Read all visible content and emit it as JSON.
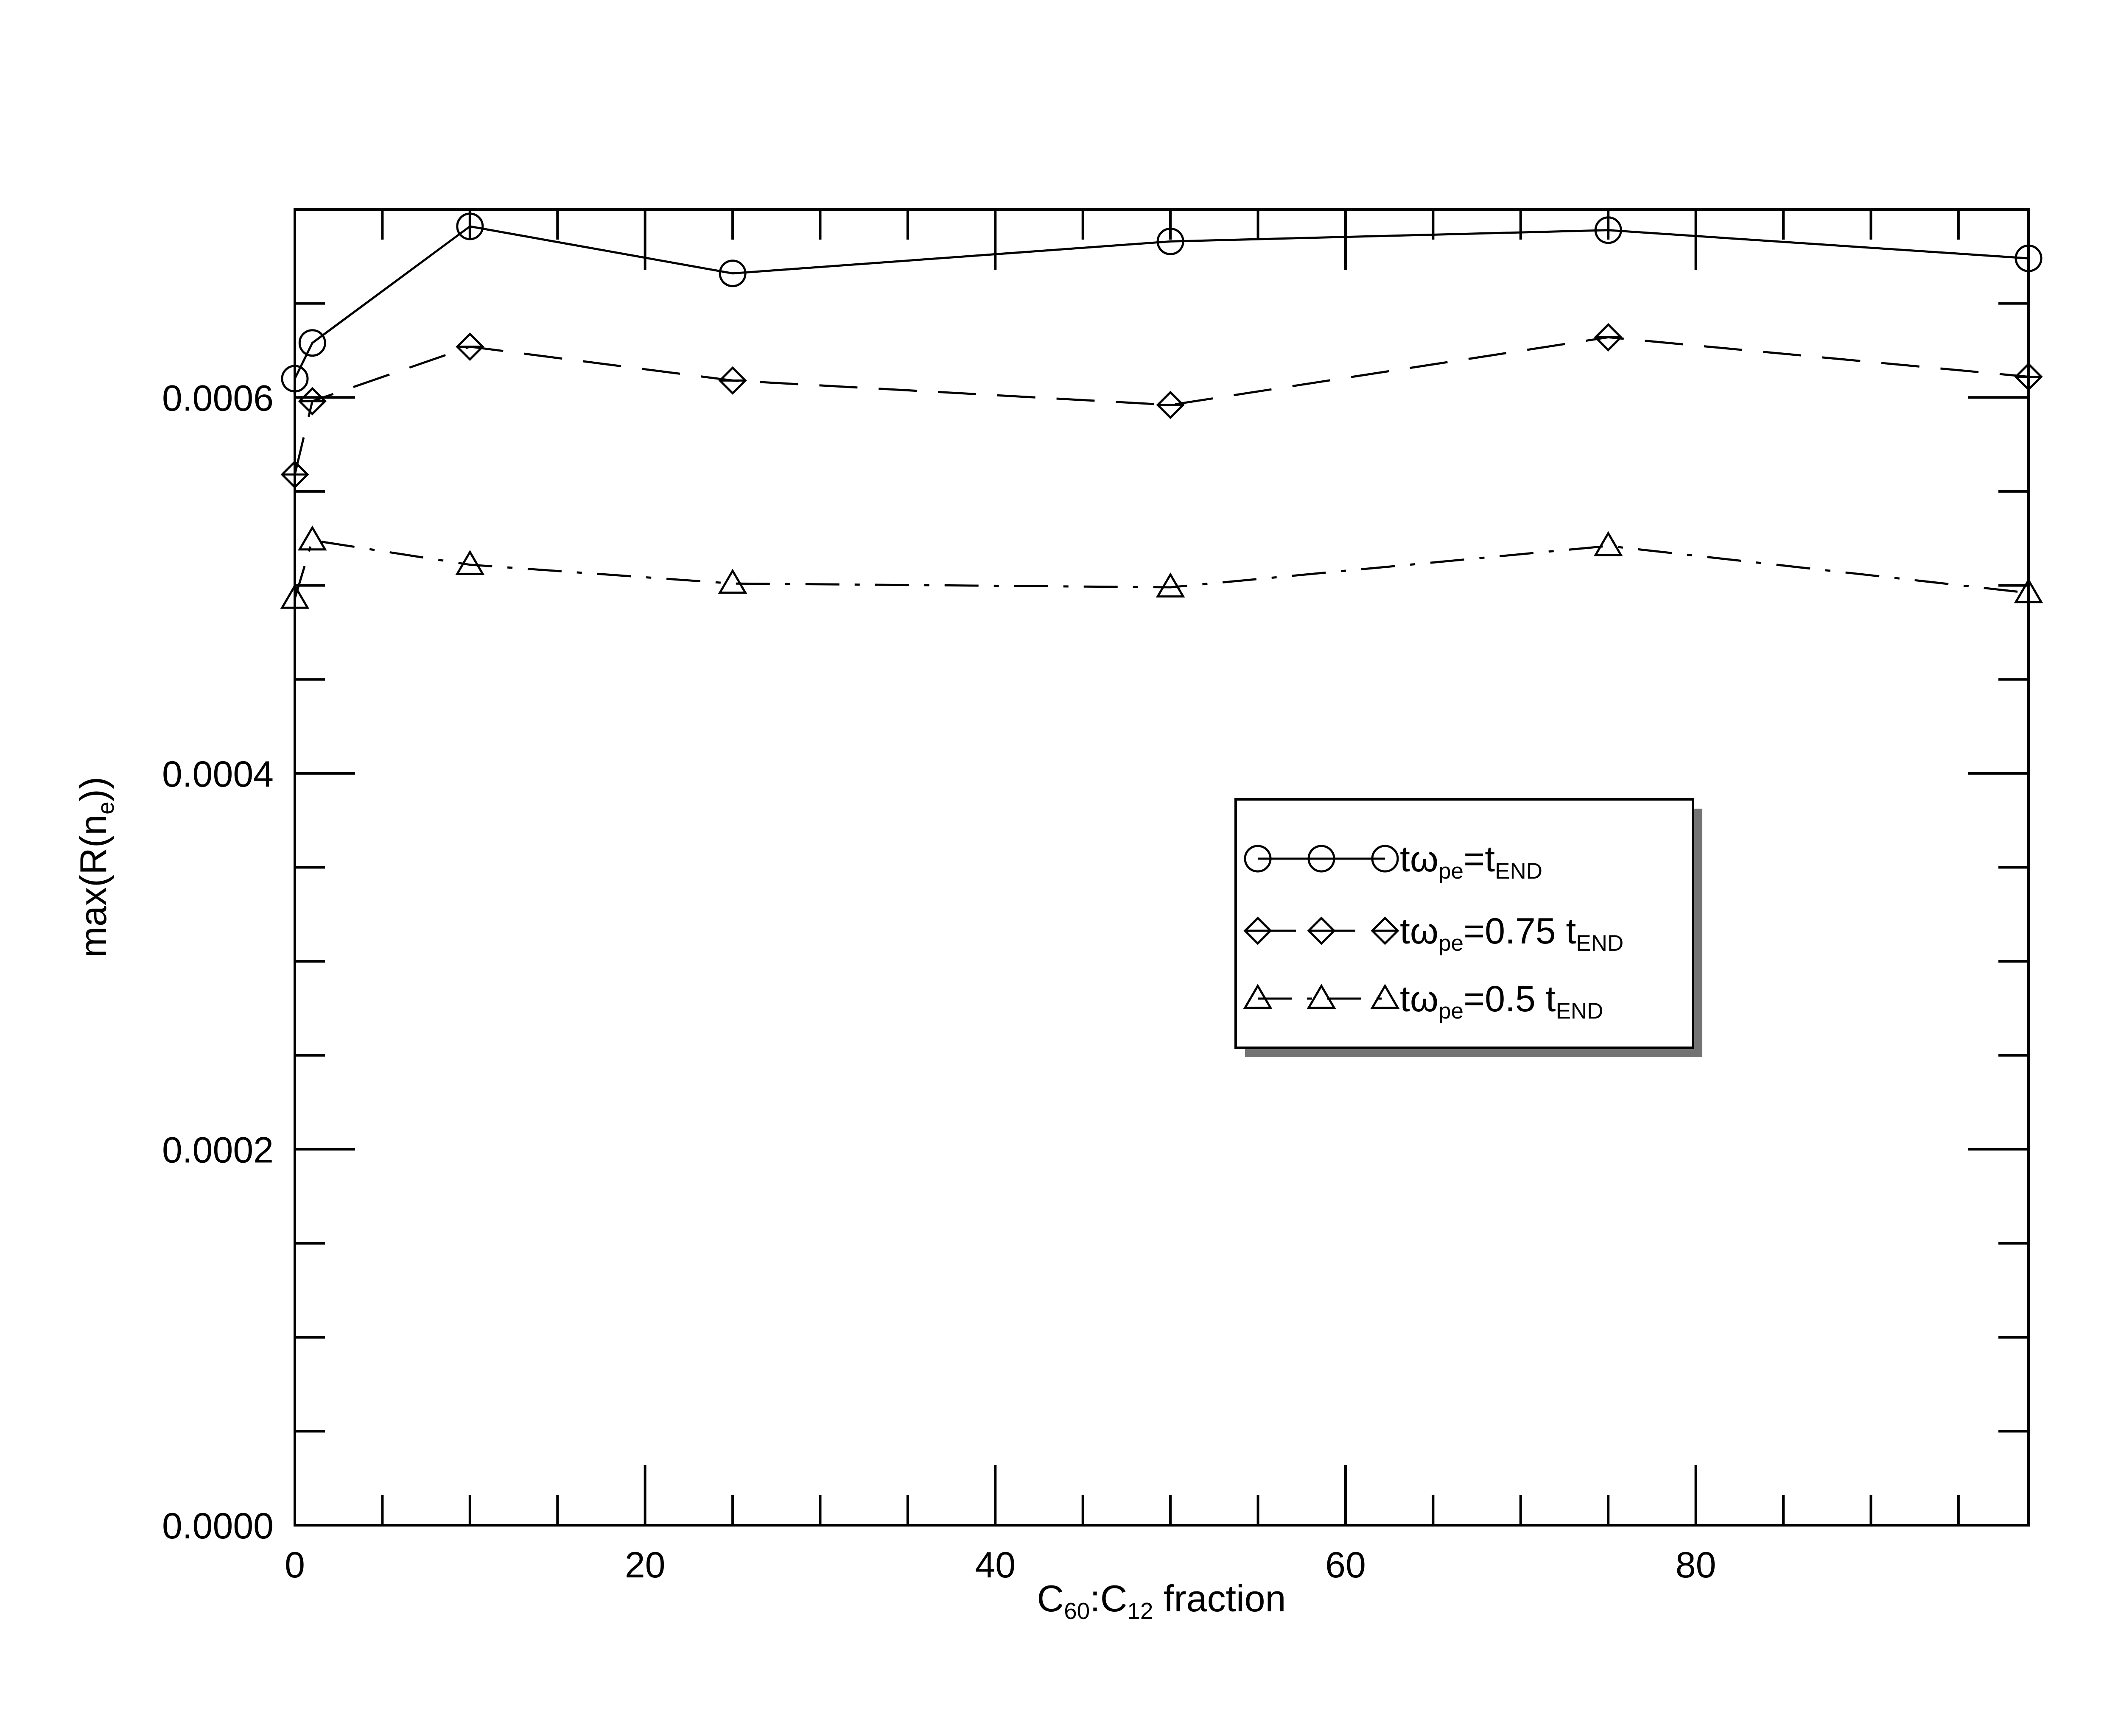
{
  "chart_data": {
    "type": "line",
    "xlabel": {
      "parts": [
        {
          "t": "C",
          "sub": false
        },
        {
          "t": "60",
          "sub": true
        },
        {
          "t": ":C",
          "sub": false
        },
        {
          "t": "12",
          "sub": true
        },
        {
          "t": " fraction",
          "sub": false
        }
      ]
    },
    "ylabel": {
      "parts": [
        {
          "t": "max(R(n",
          "sub": false
        },
        {
          "t": "e",
          "sub": true
        },
        {
          "t": "))",
          "sub": false
        }
      ]
    },
    "xlim": [
      0,
      99
    ],
    "ylim": [
      0,
      0.0007
    ],
    "x_ticks": [
      0,
      20,
      40,
      60,
      80
    ],
    "x_tick_labels": [
      "0",
      "20",
      "40",
      "60",
      "80"
    ],
    "x_minor_step": 5,
    "y_ticks": [
      0,
      0.0002,
      0.0004,
      0.0006
    ],
    "y_tick_labels": [
      "0.0000",
      "0.0002",
      "0.0004",
      "0.0006"
    ],
    "y_minor_step": 5e-05,
    "grid": false,
    "legend_position": "center-right",
    "series": [
      {
        "legend_parts": [
          {
            "t": "tω",
            "sub": false
          },
          {
            "t": "pe",
            "sub": true
          },
          {
            "t": "=t",
            "sub": false
          },
          {
            "t": "END",
            "sub": true
          }
        ],
        "marker": "circle",
        "line": "solid",
        "x": [
          0,
          1,
          10,
          25,
          50,
          75,
          99
        ],
        "y": [
          0.00061,
          0.000629,
          0.000691,
          0.000666,
          0.000683,
          0.000689,
          0.000674
        ]
      },
      {
        "legend_parts": [
          {
            "t": "tω",
            "sub": false
          },
          {
            "t": "pe",
            "sub": true
          },
          {
            "t": "=0.75 t",
            "sub": false
          },
          {
            "t": "END",
            "sub": true
          }
        ],
        "marker": "diamond",
        "line": "dashed",
        "x": [
          0,
          1,
          10,
          25,
          50,
          75,
          99
        ],
        "y": [
          0.000559,
          0.000598,
          0.000627,
          0.000609,
          0.000596,
          0.000632,
          0.000611
        ]
      },
      {
        "legend_parts": [
          {
            "t": "tω",
            "sub": false
          },
          {
            "t": "pe",
            "sub": true
          },
          {
            "t": "=0.5 t",
            "sub": false
          },
          {
            "t": "END",
            "sub": true
          }
        ],
        "marker": "triangle",
        "line": "dashdot",
        "x": [
          0,
          1,
          10,
          25,
          50,
          75,
          99
        ],
        "y": [
          0.000493,
          0.000524,
          0.000511,
          0.000501,
          0.000499,
          0.000521,
          0.000496
        ]
      }
    ]
  }
}
